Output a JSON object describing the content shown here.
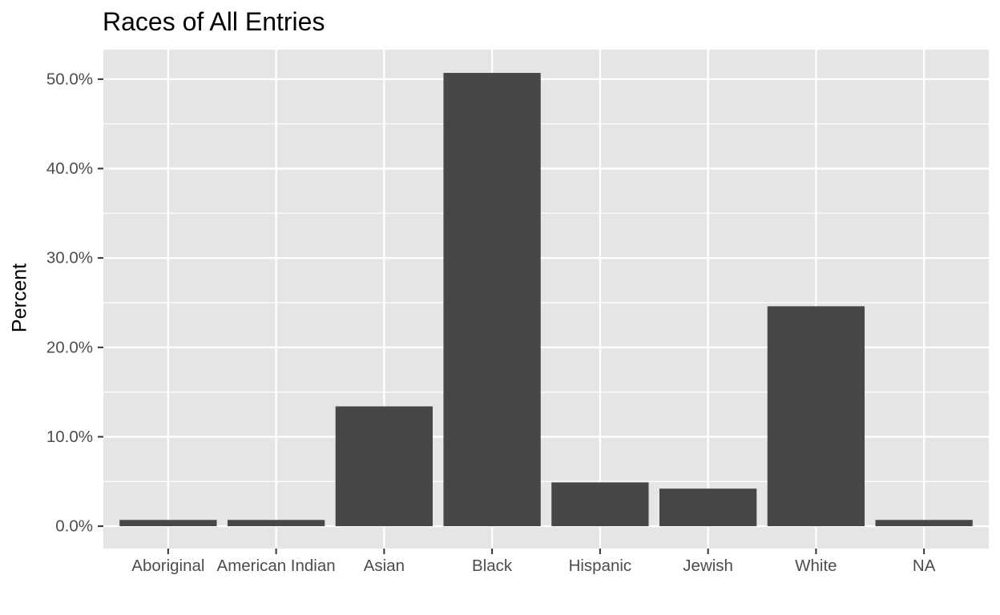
{
  "chart_data": {
    "type": "bar",
    "title": "Races of All Entries",
    "xlabel": "",
    "ylabel": "Percent",
    "categories": [
      "Aboriginal",
      "American Indian",
      "Asian",
      "Black",
      "Hispanic",
      "Jewish",
      "White",
      "NA"
    ],
    "values": [
      0.7,
      0.7,
      13.4,
      50.7,
      4.9,
      4.2,
      24.6,
      0.7
    ],
    "yticks": [
      0,
      10,
      20,
      30,
      40,
      50
    ],
    "ytick_labels": [
      "0.0%",
      "10.0%",
      "20.0%",
      "30.0%",
      "40.0%",
      "50.0%"
    ],
    "ylim": [
      -2.5,
      53.3
    ],
    "grid": true,
    "colors": {
      "panel_background": "#e5e5e5",
      "grid": "#ffffff",
      "bar_fill": "#474747",
      "tick_text": "#4d4d4d",
      "tick_mark": "#333333"
    }
  }
}
